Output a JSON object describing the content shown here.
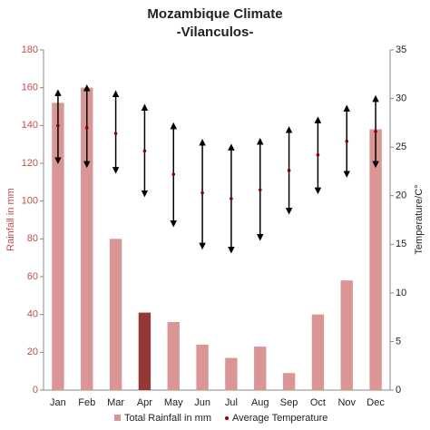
{
  "chart_data": {
    "type": "bar-range",
    "title": "Mozambique Climate",
    "subtitle": "-Vilanculos-",
    "y_label": "Rainfall in mm",
    "y2_label": "Temperature/C°",
    "categories": [
      "Jan",
      "Feb",
      "Mar",
      "Apr",
      "May",
      "Jun",
      "Jul",
      "Aug",
      "Sep",
      "Oct",
      "Nov",
      "Dec"
    ],
    "ylim": [
      0,
      180
    ],
    "yticks": [
      0,
      20,
      40,
      60,
      80,
      100,
      120,
      140,
      160,
      180
    ],
    "y2lim": [
      0,
      35
    ],
    "y2ticks": [
      0,
      5,
      10,
      15,
      20,
      25,
      30,
      35
    ],
    "series": [
      {
        "name": "Total Rainfall in mm",
        "color": "#d99694",
        "colors": [
          "#d99694",
          "#d99694",
          "#d99694",
          "#953735",
          "#d99694",
          "#d99694",
          "#d99694",
          "#d99694",
          "#d99694",
          "#d99694",
          "#d99694",
          "#d99694"
        ],
        "values": [
          152,
          160,
          80,
          41,
          36,
          24,
          17,
          23,
          9,
          40,
          58,
          138
        ]
      },
      {
        "name": "Average Temperature",
        "color": "#000000",
        "marker_color": "#8b0000",
        "axis": "y2",
        "values": [
          27.2,
          27,
          26.4,
          24.6,
          22.2,
          20.3,
          19.7,
          20.6,
          22.6,
          24.2,
          25.6,
          26.6
        ],
        "min": [
          23.6,
          23.2,
          22.6,
          20.2,
          17.1,
          14.8,
          14.4,
          15.7,
          18.4,
          20.5,
          22.2,
          23.2
        ],
        "max": [
          30.6,
          31.1,
          30.5,
          29.1,
          27.2,
          25.5,
          25,
          25.6,
          26.8,
          27.8,
          29,
          30
        ]
      }
    ]
  }
}
